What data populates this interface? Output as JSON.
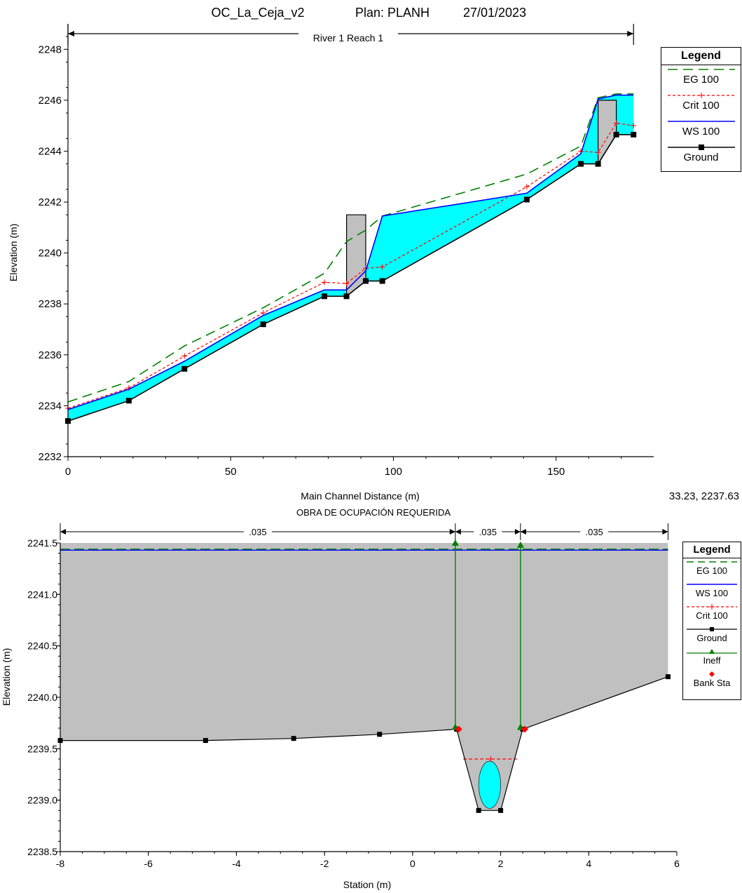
{
  "profile": {
    "title_parts": [
      "OC_La_Ceja_v2",
      "Plan: PLANH",
      "27/01/2023"
    ],
    "reach_label": "River 1 Reach 1",
    "cursor_readout": "33.23, 2237.63",
    "legend": {
      "title": "Legend",
      "items": [
        "EG  100",
        "Crit  100",
        "WS  100",
        "Ground"
      ]
    }
  },
  "cross_section": {
    "title": "OBRA DE OCUPACIÓN REQUERIDA",
    "n_values": [
      ".035",
      ".035",
      ".035"
    ],
    "legend": {
      "title": "Legend",
      "items": [
        "EG 100",
        "WS 100",
        "Crit 100",
        "Ground",
        "Ineff",
        "Bank Sta"
      ]
    }
  },
  "colors": {
    "water": "#00ffff",
    "structure": "#c0c0c0",
    "eg": "#008000",
    "ws": "#0000ff",
    "crit": "#ff0000",
    "ground": "#000000",
    "ineff": "#008000",
    "bank": "#ff0000"
  },
  "chart_data": [
    {
      "type": "line",
      "xlabel": "Main Channel Distance (m)",
      "ylabel": "Elevation (m)",
      "xlim": [
        0,
        180
      ],
      "ylim": [
        2232,
        2249
      ],
      "xticks": [
        0,
        50,
        100,
        150
      ],
      "yticks": [
        2232,
        2234,
        2236,
        2238,
        2240,
        2242,
        2244,
        2246,
        2248
      ],
      "grid": false,
      "legend_position": "right",
      "series": [
        {
          "name": "Ground",
          "x": [
            0,
            18.7,
            35.8,
            60,
            78.8,
            85.6,
            91.5,
            96.6,
            141,
            157.6,
            162.9,
            168.5,
            173.8
          ],
          "values": [
            2233.4,
            2234.2,
            2235.45,
            2237.2,
            2238.3,
            2238.3,
            2238.9,
            2238.9,
            2242.1,
            2243.5,
            2243.5,
            2244.65,
            2244.65
          ]
        },
        {
          "name": "WS  100",
          "x": [
            0,
            18.7,
            35.8,
            60,
            78.8,
            85.6,
            91.5,
            96.6,
            141,
            157.6,
            162.9,
            168.5,
            173.8
          ],
          "values": [
            2233.85,
            2234.65,
            2235.75,
            2237.55,
            2238.55,
            2238.55,
            2239.3,
            2241.45,
            2242.35,
            2243.9,
            2246.05,
            2246.2,
            2246.2
          ]
        },
        {
          "name": "Crit  100",
          "x": [
            0,
            18.7,
            35.8,
            60,
            78.8,
            85.6,
            91.5,
            96.6,
            141,
            157.6,
            162.9,
            168.5,
            173.8
          ],
          "values": [
            2233.9,
            2234.7,
            2235.95,
            2237.65,
            2238.85,
            2238.8,
            2239.4,
            2239.45,
            2242.6,
            2244.0,
            2243.95,
            2245.1,
            2245.0
          ]
        },
        {
          "name": "EG  100",
          "x": [
            0,
            18.7,
            35.8,
            60,
            78.8,
            85.6,
            91.5,
            96.6,
            141,
            157.6,
            162.9,
            168.5,
            173.8
          ],
          "values": [
            2234.15,
            2234.95,
            2236.35,
            2237.85,
            2239.2,
            2240.45,
            2240.9,
            2241.45,
            2243.1,
            2244.2,
            2246.1,
            2246.25,
            2246.25
          ]
        }
      ],
      "structures": [
        {
          "x_from": 85.6,
          "x_to": 91.5,
          "top": 2241.5
        },
        {
          "x_from": 162.9,
          "x_to": 168.5,
          "top": 2246.0
        }
      ],
      "reach_extent": [
        0,
        173.8
      ]
    },
    {
      "type": "line",
      "xlabel": "Station (m)",
      "ylabel": "Elevation (m)",
      "xlim": [
        -8,
        6
      ],
      "ylim": [
        2238.5,
        2241.5
      ],
      "xticks": [
        -8,
        -6,
        -4,
        -2,
        0,
        2,
        4,
        6
      ],
      "yticks": [
        2238.5,
        2239.0,
        2239.5,
        2240.0,
        2240.5,
        2241.0,
        2241.5
      ],
      "grid": false,
      "legend_position": "right",
      "series": [
        {
          "name": "Ground",
          "x": [
            -8,
            -4.7,
            -2.7,
            -0.75,
            1.0,
            1.5,
            2.0,
            2.5,
            5.8
          ],
          "values": [
            2239.58,
            2239.58,
            2239.6,
            2239.64,
            2239.69,
            2238.9,
            2238.9,
            2239.69,
            2240.2
          ]
        },
        {
          "name": "WS 100",
          "x": [
            -8,
            5.8
          ],
          "values": [
            2241.43,
            2241.43
          ]
        },
        {
          "name": "EG 100",
          "x": [
            -8,
            5.8
          ],
          "values": [
            2241.44,
            2241.44
          ]
        },
        {
          "name": "Crit 100",
          "x": [
            1.15,
            2.4
          ],
          "values": [
            2239.4,
            2239.4
          ]
        },
        {
          "name": "Ineff",
          "x": [
            0.97,
            2.45
          ],
          "values": [
            2241.5,
            2241.48
          ]
        },
        {
          "name": "Bank Sta",
          "x": [
            1.0,
            2.5
          ],
          "values": [
            2239.69,
            2239.69
          ]
        }
      ],
      "culvert_water": {
        "cx": 1.75,
        "cy": 2239.15,
        "rx": 0.25,
        "ry": 0.23
      },
      "n_breaks": [
        -8,
        0.97,
        2.45,
        5.8
      ]
    }
  ]
}
